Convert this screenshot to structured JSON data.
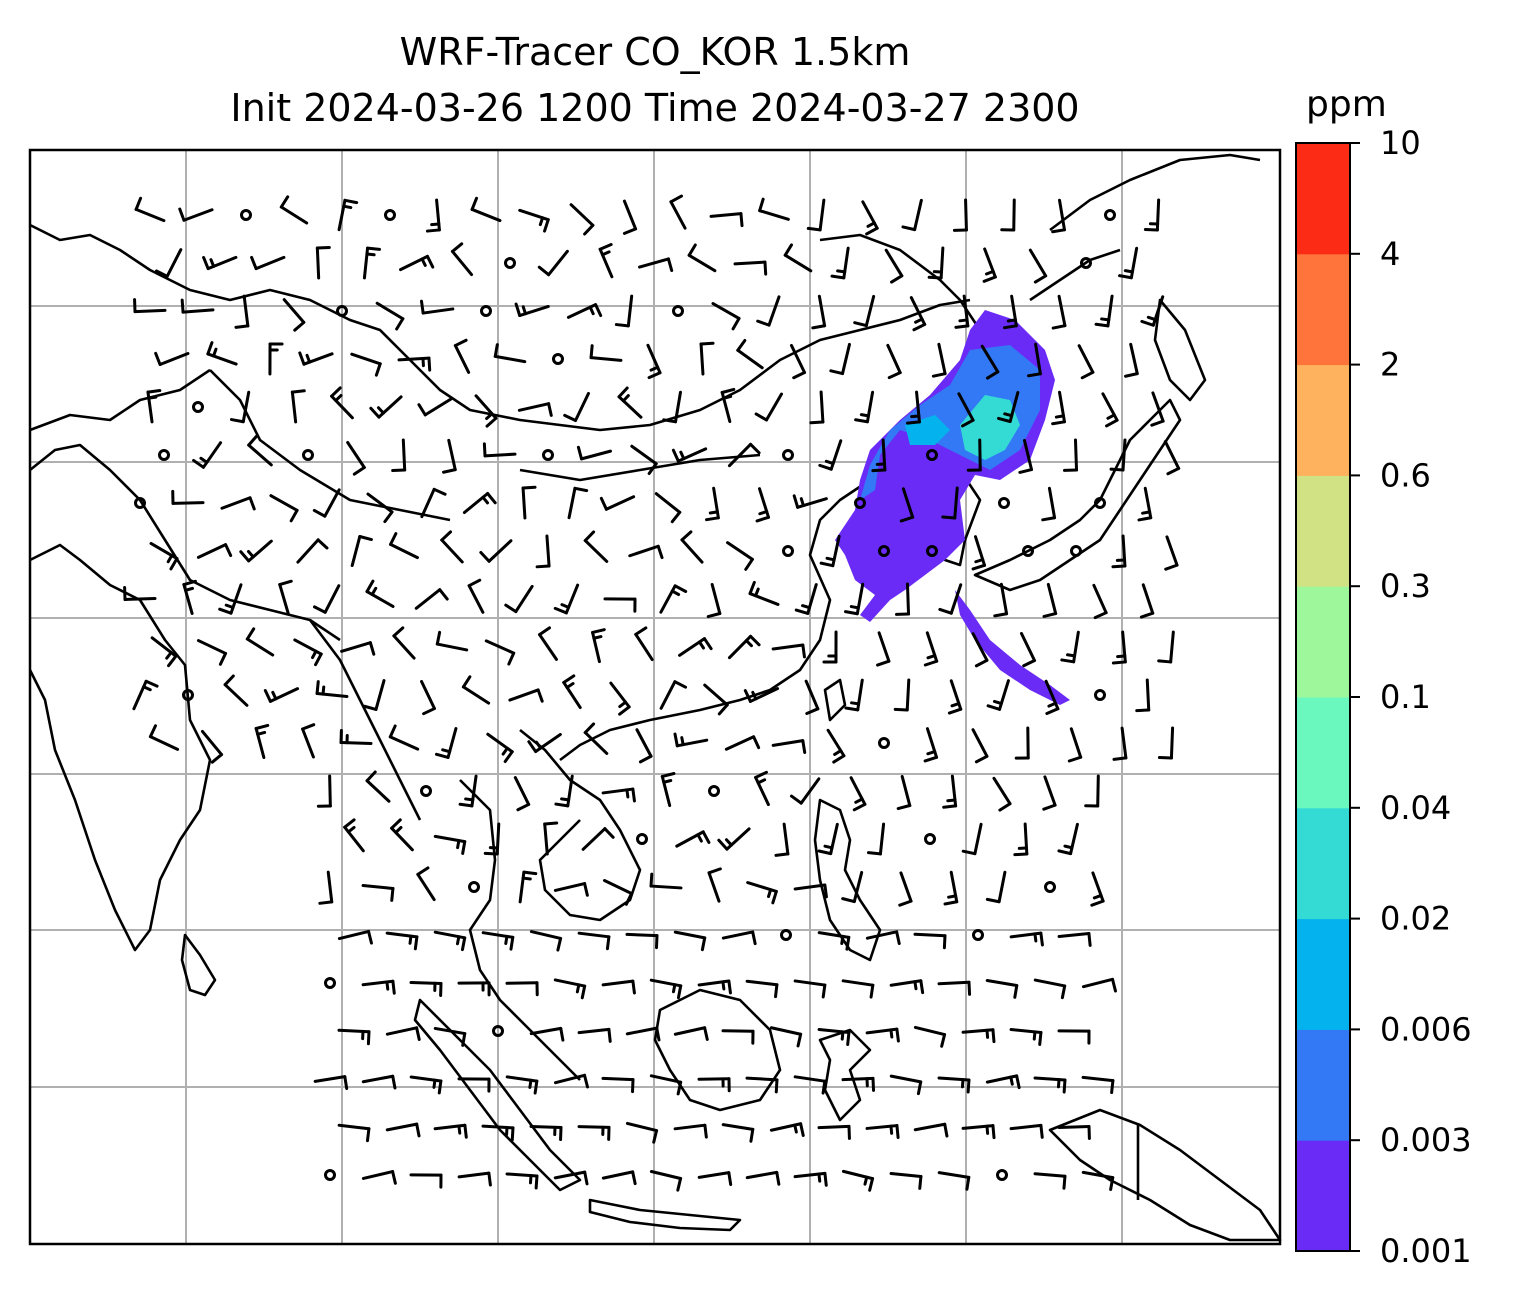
{
  "chart_data": {
    "type": "heatmap",
    "title_line1": "WRF-Tracer CO_KOR 1.5km",
    "title_line2": "Init 2024-03-26 1200 Time 2024-03-27 2300",
    "xlabel": "",
    "ylabel": "",
    "grid": true,
    "colorbar": {
      "label": "ppm",
      "levels": [
        "0.001",
        "0.003",
        "0.006",
        "0.02",
        "0.04",
        "0.1",
        "0.3",
        "0.6",
        "2",
        "4",
        "10"
      ],
      "colors": [
        "#6a2bf7",
        "#3378f5",
        "#04b3ed",
        "#33dbd4",
        "#6af8bf",
        "#9ff79b",
        "#d1e284",
        "#ffb25e",
        "#ff743a",
        "#fb2b16"
      ]
    },
    "contour_color": "#6a2bf7"
  }
}
